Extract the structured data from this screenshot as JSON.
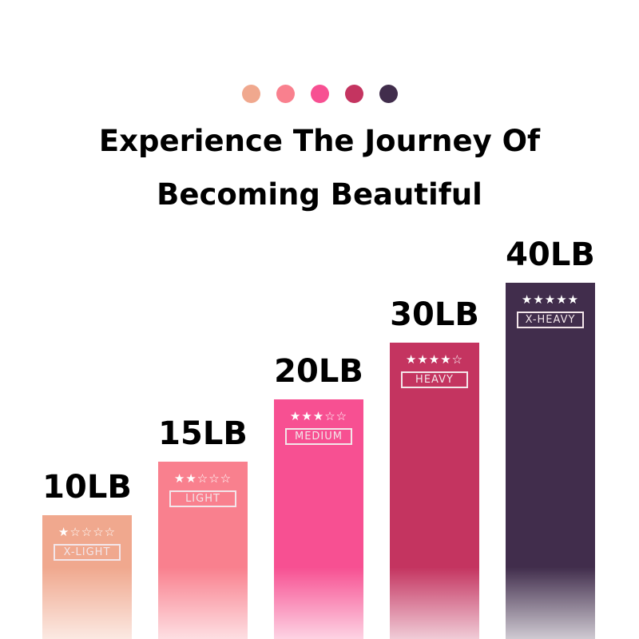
{
  "header": {
    "dot_colors": [
      "#f0a88e",
      "#f9808e",
      "#f75092",
      "#c43460",
      "#412d4c"
    ],
    "title_line1": "Experience The Journey Of",
    "title_line2": "Becoming Beautiful"
  },
  "bands": [
    {
      "weight": "10LB",
      "level": "X-LIGHT",
      "stars": 1,
      "color": "#f0a88e"
    },
    {
      "weight": "15LB",
      "level": "LIGHT",
      "stars": 2,
      "color": "#f9808e"
    },
    {
      "weight": "20LB",
      "level": "MEDIUM",
      "stars": 3,
      "color": "#f75092"
    },
    {
      "weight": "30LB",
      "level": "HEAVY",
      "stars": 4,
      "color": "#c43460"
    },
    {
      "weight": "40LB",
      "level": "X-HEAVY",
      "stars": 5,
      "color": "#412d4c"
    }
  ]
}
